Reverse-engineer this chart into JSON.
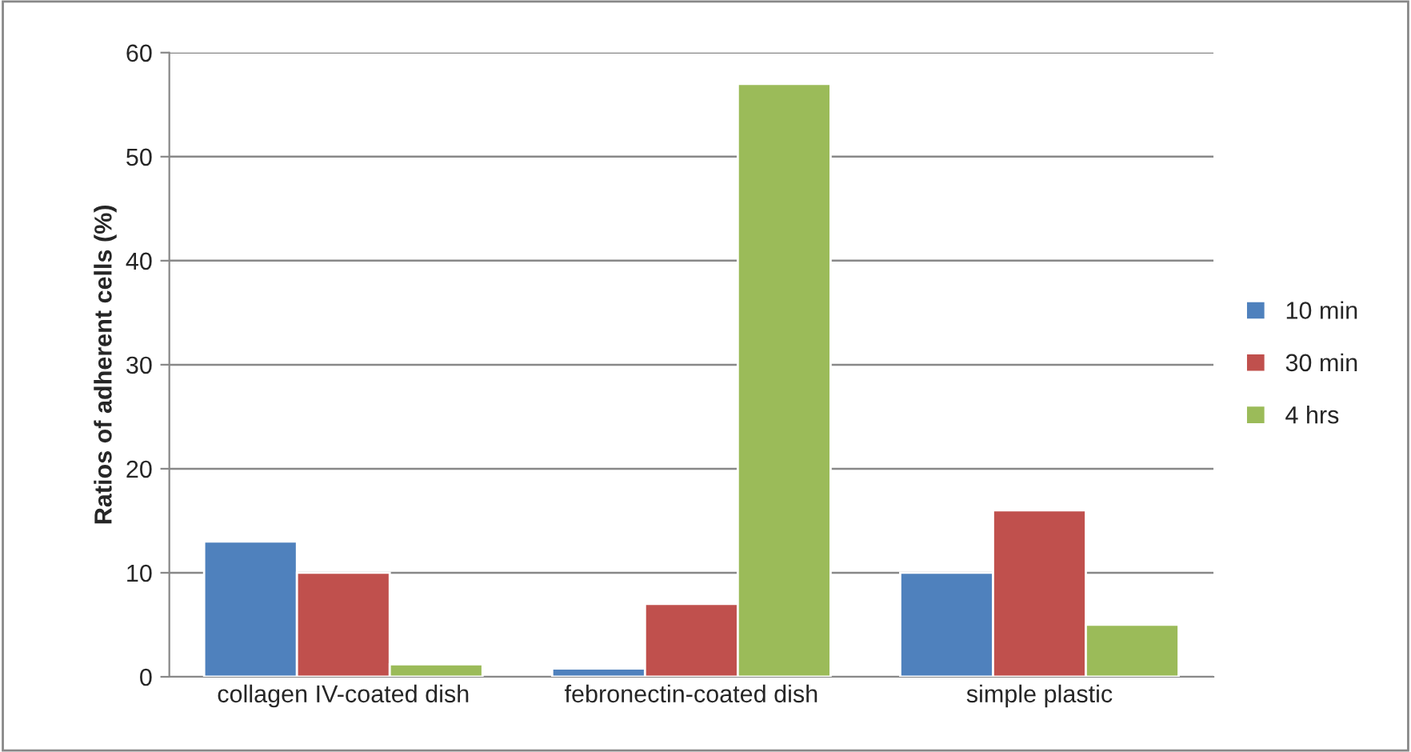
{
  "chart_data": {
    "type": "bar",
    "ylabel": "Ratios of adherent cells (%)",
    "categories": [
      "collagen IV-coated dish",
      "febronectin-coated dish",
      "simple plastic"
    ],
    "series": [
      {
        "name": "10 min",
        "color": "#4f81bd",
        "values": [
          13,
          0.8,
          10
        ]
      },
      {
        "name": "30 min",
        "color": "#c0504d",
        "values": [
          10,
          7,
          16
        ]
      },
      {
        "name": "4 hrs",
        "color": "#9bbb59",
        "values": [
          1.2,
          57,
          5
        ]
      }
    ],
    "ylim": [
      0,
      60
    ],
    "yticks": [
      0,
      10,
      20,
      30,
      40,
      50,
      60
    ],
    "grid": "y",
    "legend": "right"
  }
}
